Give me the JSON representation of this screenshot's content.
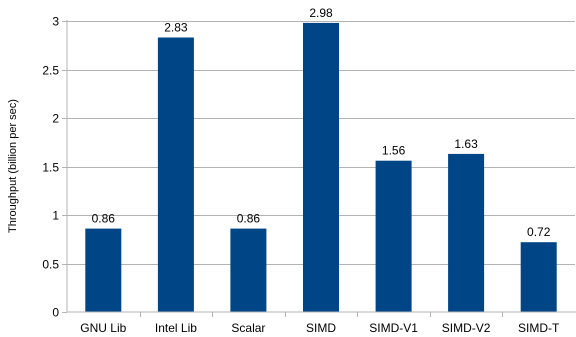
{
  "chart_data": {
    "type": "bar",
    "title": "",
    "xlabel": "",
    "ylabel": "Throughput (billion per sec)",
    "categories": [
      "GNU Lib",
      "Intel Lib",
      "Scalar",
      "SIMD",
      "SIMD-V1",
      "SIMD-V2",
      "SIMD-T"
    ],
    "values": [
      0.86,
      2.83,
      0.86,
      2.98,
      1.56,
      1.63,
      0.72
    ],
    "data_labels": [
      "0.86",
      "2.83",
      "0.86",
      "2.98",
      "1.56",
      "1.63",
      "0.72"
    ],
    "yticks": [
      0,
      0.5,
      1,
      1.5,
      2,
      2.5,
      3
    ],
    "ytick_labels": [
      "0",
      "0.5",
      "1",
      "1.5",
      "2",
      "2.5",
      "3"
    ],
    "ylim": [
      0,
      3
    ],
    "grid": true,
    "legend": "none",
    "bar_color": "#004586",
    "grid_color": "#b3b3b3"
  }
}
